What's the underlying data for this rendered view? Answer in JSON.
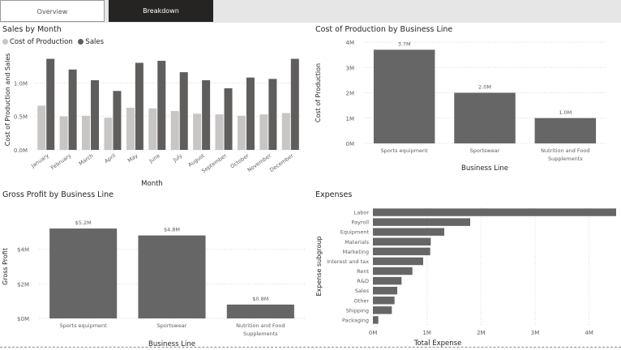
{
  "tabs": [
    {
      "label": "Overview",
      "active": false
    },
    {
      "label": "Breakdown",
      "active": true
    }
  ],
  "colors": {
    "cost": "#c8c6c4",
    "sales": "#605e5c",
    "bar": "#666666",
    "grid": "#d9d9d9"
  },
  "chart_data": [
    {
      "id": "sales_by_month",
      "type": "bar",
      "title": "Sales by Month",
      "xlabel": "Month",
      "ylabel": "Cost of Production and Sales",
      "categories": [
        "January",
        "February",
        "March",
        "April",
        "May",
        "June",
        "July",
        "August",
        "September",
        "October",
        "November",
        "December"
      ],
      "series": [
        {
          "name": "Cost of Production",
          "values": [
            0.66,
            0.5,
            0.51,
            0.48,
            0.63,
            0.62,
            0.58,
            0.54,
            0.53,
            0.51,
            0.53,
            0.55
          ]
        },
        {
          "name": "Sales",
          "values": [
            1.36,
            1.2,
            1.04,
            0.88,
            1.3,
            1.33,
            1.16,
            1.04,
            0.92,
            1.08,
            1.06,
            1.36
          ]
        }
      ],
      "yticks": [
        "0.0M",
        "0.5M",
        "1.0M"
      ],
      "ylim": [
        0,
        1.5
      ],
      "legend": "top-left",
      "grid": true
    },
    {
      "id": "cost_by_line",
      "type": "bar",
      "title": "Cost of Production by Business Line",
      "xlabel": "Business Line",
      "ylabel": "Cost of Production",
      "categories": [
        "Sports equipment",
        "Sportswear",
        "Nutrition and Food Supplements"
      ],
      "values": [
        3.7,
        2.0,
        1.0
      ],
      "data_labels": [
        "3.7M",
        "2.0M",
        "1.0M"
      ],
      "yticks": [
        "0M",
        "1M",
        "2M",
        "3M",
        "4M"
      ],
      "ylim": [
        0,
        4
      ],
      "grid": true
    },
    {
      "id": "gross_profit_by_line",
      "type": "bar",
      "title": "Gross Profit by Business Line",
      "xlabel": "Business Line",
      "ylabel": "Gross Profit",
      "categories": [
        "Sports equipment",
        "Sportswear",
        "Nutrition and Food Supplements"
      ],
      "values": [
        5.2,
        4.8,
        0.8
      ],
      "data_labels": [
        "$5.2M",
        "$4.8M",
        "$0.8M"
      ],
      "yticks": [
        "$0M",
        "$2M",
        "$4M"
      ],
      "ylim": [
        0,
        6
      ],
      "grid": true
    },
    {
      "id": "expenses",
      "type": "bar",
      "orientation": "horizontal",
      "title": "Expenses",
      "xlabel": "Total Expense",
      "ylabel": "Expense subgroup",
      "categories": [
        "Labor",
        "Payroll",
        "Equipment",
        "Materials",
        "Marketing",
        "Interest and tax",
        "Rent",
        "R&D",
        "Sales",
        "Other",
        "Shipping",
        "Packaging"
      ],
      "values": [
        4.5,
        1.8,
        1.32,
        1.07,
        1.06,
        0.93,
        0.73,
        0.53,
        0.45,
        0.4,
        0.35,
        0.1
      ],
      "xticks": [
        "0M",
        "1M",
        "2M",
        "3M",
        "4M"
      ],
      "xlim": [
        0,
        4.5
      ],
      "grid": true
    }
  ]
}
